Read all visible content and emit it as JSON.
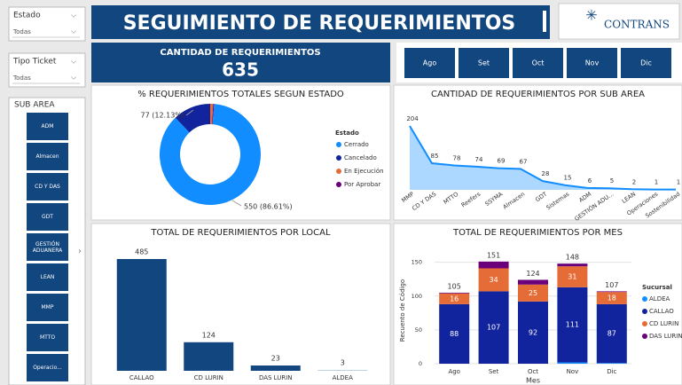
{
  "header": {
    "title": "SEGUIMIENTO DE REQUERIMIENTOS",
    "logo": "CONTRANS"
  },
  "filters": [
    {
      "label": "Estado",
      "value": "Todas"
    },
    {
      "label": "Tipo Ticket",
      "value": "Todas"
    }
  ],
  "kpi": {
    "label": "CANTIDAD DE REQUERIMIENTOS",
    "value": 635
  },
  "month_buttons": [
    "Ago",
    "Set",
    "Oct",
    "Nov",
    "Dic"
  ],
  "sub_area": {
    "label": "SUB AREA",
    "buttons": [
      "ADM",
      "Almacen",
      "CD Y DAS",
      "GDT",
      "GESTIÓN ADUANERA",
      "LEAN",
      "MMP",
      "MTTO",
      "Operacio..."
    ]
  },
  "chart_data": [
    {
      "type": "donut",
      "title": "% REQUERIMIENTOS TOTALES SEGUN ESTADO",
      "legend_title": "Estado",
      "categories": [
        "Cerrado",
        "Cancelado",
        "En Ejecución",
        "Por Aprobar"
      ],
      "values": [
        550,
        77,
        6,
        2
      ],
      "value_labels": [
        "550 (86.61%)",
        "77 (12.13%)",
        null,
        null
      ],
      "colors": [
        "#118dff",
        "#12239e",
        "#e66c37",
        "#6b007b"
      ]
    },
    {
      "type": "area",
      "title": "CANTIDAD DE REQUERIMIENTOS POR SUB AREA",
      "categories": [
        "MMP",
        "CD Y DAS",
        "MTTO",
        "Reefers",
        "SSYMA",
        "Almacen",
        "GDT",
        "Sistemas",
        "ADM",
        "GESTIÓN ADU...",
        "LEAN",
        "Operaciones",
        "Sostenibilidad"
      ],
      "values": [
        204,
        85,
        78,
        74,
        69,
        67,
        28,
        15,
        6,
        5,
        2,
        1,
        1
      ],
      "color": "#118dff"
    },
    {
      "type": "bar",
      "title": "TOTAL DE REQUERIMIENTOS POR LOCAL",
      "categories": [
        "CALLAO",
        "CD LURIN",
        "DAS LURIN",
        "ALDEA"
      ],
      "values": [
        485,
        124,
        23,
        3
      ],
      "colors": [
        "#12467e",
        "#12467e",
        "#12467e",
        "#a9c4d9"
      ]
    },
    {
      "type": "stacked_bar",
      "title": "TOTAL DE REQUERIMIENTOS POR MES",
      "legend_title": "Sucursal",
      "x_label": "Mes",
      "y_label": "Recuento de Código",
      "categories": [
        "Ago",
        "Set",
        "Oct",
        "Nov",
        "Dic"
      ],
      "ylim": [
        0,
        160
      ],
      "yticks": [
        0,
        50,
        100,
        150
      ],
      "totals": [
        105,
        151,
        124,
        148,
        107
      ],
      "series": [
        {
          "name": "ALDEA",
          "color": "#118dff",
          "values": [
            0,
            0,
            0,
            2,
            1
          ]
        },
        {
          "name": "CALLAO",
          "color": "#12239e",
          "values": [
            88,
            107,
            92,
            111,
            87
          ],
          "labels": true
        },
        {
          "name": "CD LURIN",
          "color": "#e66c37",
          "values": [
            16,
            34,
            25,
            31,
            18
          ],
          "labels": true
        },
        {
          "name": "DAS LURIN",
          "color": "#6b007b",
          "values": [
            1,
            10,
            7,
            4,
            1
          ]
        }
      ]
    }
  ]
}
